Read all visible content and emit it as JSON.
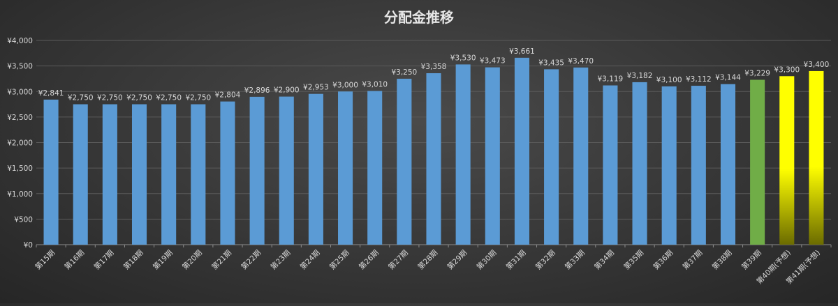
{
  "chart_data": {
    "type": "bar",
    "title": "分配金推移",
    "categories": [
      "第15期",
      "第16期",
      "第17期",
      "第18期",
      "第19期",
      "第20期",
      "第21期",
      "第22期",
      "第23期",
      "第24期",
      "第25期",
      "第26期",
      "第27期",
      "第28期",
      "第29期",
      "第30期",
      "第31期",
      "第32期",
      "第33期",
      "第34期",
      "第35期",
      "第36期",
      "第37期",
      "第38期",
      "第39期",
      "第40期(予想)",
      "第41期(予想)"
    ],
    "values": [
      2841,
      2750,
      2750,
      2750,
      2750,
      2750,
      2804,
      2896,
      2900,
      2953,
      3000,
      3010,
      3250,
      3358,
      3530,
      3473,
      3661,
      3435,
      3470,
      3119,
      3182,
      3100,
      3112,
      3144,
      3229,
      3300,
      3400
    ],
    "value_labels": [
      "¥2,841",
      "¥2,750",
      "¥2,750",
      "¥2,750",
      "¥2,750",
      "¥2,750",
      "¥2,804",
      "¥2,896",
      "¥2,900",
      "¥2,953",
      "¥3,000",
      "¥3,010",
      "¥3,250",
      "¥3,358",
      "¥3,530",
      "¥3,473",
      "¥3,661",
      "¥3,435",
      "¥3,470",
      "¥3,119",
      "¥3,182",
      "¥3,100",
      "¥3,112",
      "¥3,144",
      "¥3,229",
      "¥3,300",
      "¥3,400"
    ],
    "y_ticks": [
      0,
      500,
      1000,
      1500,
      2000,
      2500,
      3000,
      3500,
      4000
    ],
    "y_tick_labels": [
      "¥0",
      "¥500",
      "¥1,000",
      "¥1,500",
      "¥2,000",
      "¥2,500",
      "¥3,000",
      "¥3,500",
      "¥4,000"
    ],
    "ylim": [
      0,
      4000
    ],
    "grid": true,
    "legend": "none",
    "colors": {
      "actual": "#5b9bd5",
      "latest": "#70ad47",
      "forecast_top": "#ffff00",
      "forecast_bottom": "#6b6b00",
      "text": "#d9d9d9",
      "grid": "#5a5a5a",
      "axis": "#8c8c8c"
    },
    "bar_kind": [
      "actual",
      "actual",
      "actual",
      "actual",
      "actual",
      "actual",
      "actual",
      "actual",
      "actual",
      "actual",
      "actual",
      "actual",
      "actual",
      "actual",
      "actual",
      "actual",
      "actual",
      "actual",
      "actual",
      "actual",
      "actual",
      "actual",
      "actual",
      "actual",
      "latest",
      "forecast",
      "forecast"
    ]
  }
}
